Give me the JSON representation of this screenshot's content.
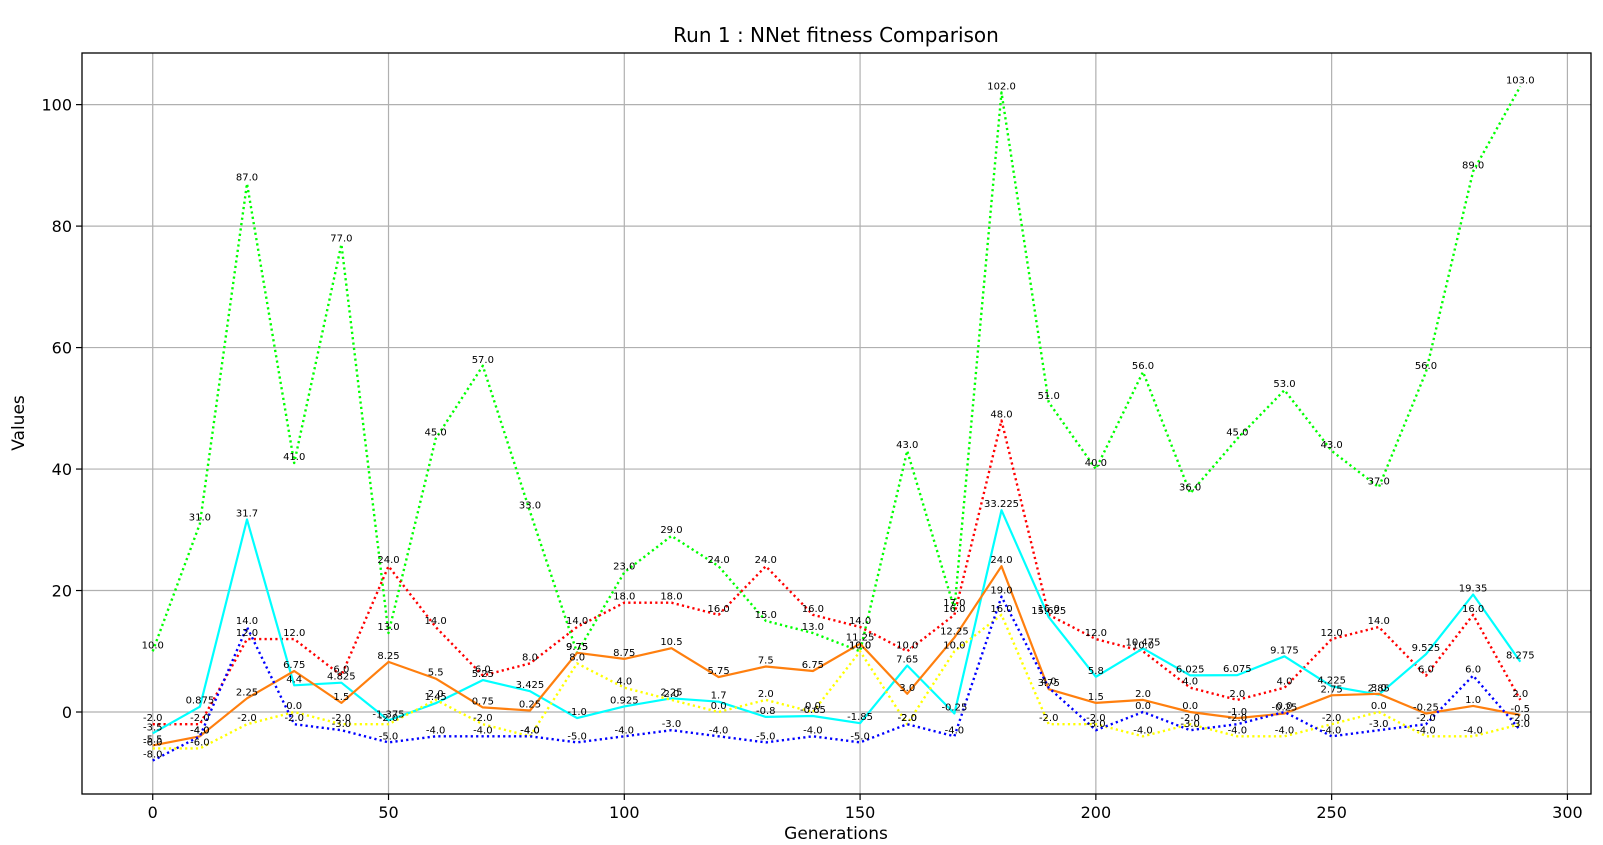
{
  "chart_data": {
    "type": "line",
    "title": "Run 1 : NNet fitness Comparison",
    "xlabel": "Generations",
    "ylabel": "Values",
    "xlim": [
      -15,
      305
    ],
    "ylim": [
      -13.5,
      108.5
    ],
    "x_ticks": [
      0,
      50,
      100,
      150,
      200,
      250,
      300
    ],
    "y_ticks": [
      0,
      20,
      40,
      60,
      80,
      100
    ],
    "grid": true,
    "legend": "none",
    "x": [
      0,
      10,
      20,
      30,
      40,
      50,
      60,
      70,
      80,
      90,
      100,
      110,
      120,
      130,
      140,
      150,
      160,
      170,
      180,
      190,
      200,
      210,
      220,
      230,
      240,
      250,
      260,
      270,
      280,
      290
    ],
    "series": [
      {
        "color": "#00ff00",
        "style": "dotted",
        "values": [
          10.0,
          31.0,
          87.0,
          41.0,
          77.0,
          13.0,
          45.0,
          57.0,
          33.0,
          9.75,
          23.0,
          29.0,
          24.0,
          15.0,
          13.0,
          10.0,
          43.0,
          17.0,
          102.0,
          51.0,
          40.0,
          56.0,
          36.0,
          45.0,
          53.0,
          43.0,
          37.0,
          56.0,
          89.0,
          103.0
        ],
        "labels": [
          "10.0",
          "31.0",
          "87.0",
          "41.0",
          "77.0",
          "13.0",
          "45.0",
          "57.0",
          "33.0",
          "9.75",
          "23.0",
          "29.0",
          "24.0",
          "15.0",
          "13.0",
          "10.0",
          "43.0",
          "17.0",
          "102.0",
          "51.0",
          "40.0",
          "56.0",
          "36.0",
          "45.0",
          "53.0",
          "43.0",
          "37.0",
          "56.0",
          "89.0",
          "103.0"
        ]
      },
      {
        "color": "#ff0000",
        "style": "dotted",
        "values": [
          -2.0,
          -2.0,
          12.0,
          12.0,
          6.0,
          24.0,
          14.0,
          6.0,
          8.0,
          14.0,
          18.0,
          18.0,
          16.0,
          24.0,
          16.0,
          14.0,
          10.0,
          16.0,
          48.0,
          16.0,
          12.0,
          10.0,
          4.0,
          2.0,
          4.0,
          12.0,
          14.0,
          6.0,
          16.0,
          2.0
        ],
        "labels": [
          "-2.0",
          "-2.0",
          "12.0",
          "12.0",
          "6.0",
          "24.0",
          "14.0",
          "6.0",
          "8.0",
          "14.0",
          "18.0",
          "18.0",
          "16.0",
          "24.0",
          "16.0",
          "14.0",
          "10.0",
          "16.0",
          "48.0",
          "16.0",
          "12.0",
          "10.0",
          "4.0",
          "2.0",
          "4.0",
          "12.0",
          "14.0",
          "6.0",
          "16.0",
          "2.0"
        ]
      },
      {
        "color": "#00ffff",
        "style": "solid",
        "values": [
          -3.5,
          0.875,
          31.7,
          4.4,
          4.825,
          -1.375,
          1.45,
          5.25,
          3.425,
          -1.0,
          0.925,
          2.25,
          1.7,
          -0.8,
          -0.65,
          -1.85,
          7.65,
          -0.25,
          33.225,
          15.625,
          5.8,
          10.475,
          6.025,
          6.075,
          9.175,
          4.225,
          2.85,
          9.525,
          19.35,
          8.275
        ],
        "labels": [
          "-3.5",
          "0.875",
          "31.7",
          "4.4",
          "4.825",
          "-1.375",
          "1.45",
          "5.25",
          "3.425",
          "-1.0",
          "0.925",
          "2.25",
          "1.7",
          "-0.8",
          "-0.65",
          "-1.85",
          "7.65",
          "-0.25",
          "33.225",
          "15.625",
          "5.8",
          "10.475",
          "6.025",
          "6.075",
          "9.175",
          "4.225",
          "2.85",
          "9.525",
          "19.35",
          "8.275"
        ]
      },
      {
        "color": "#ff7f0e",
        "style": "solid",
        "values": [
          -5.5,
          -4.0,
          2.25,
          6.75,
          1.5,
          8.25,
          5.5,
          0.75,
          0.25,
          9.75,
          8.75,
          10.5,
          5.75,
          7.5,
          6.75,
          11.25,
          3.0,
          12.25,
          24.0,
          3.75,
          1.5,
          2.0,
          0.0,
          -1.0,
          -0.25,
          2.75,
          3.0,
          -0.25,
          1.0,
          -0.5
        ],
        "labels": [
          "-5.5",
          "-4.0",
          "2.25",
          "6.75",
          "1.5",
          "8.25",
          "5.5",
          "0.75",
          "0.25",
          "9.75",
          "8.75",
          "10.5",
          "5.75",
          "7.5",
          "6.75",
          "11.25",
          "3.0",
          "12.25",
          "24.0",
          "3.75",
          "1.5",
          "2.0",
          "0.0",
          "-1.0",
          "-0.25",
          "2.75",
          "3.0",
          "-0.25",
          "1.0",
          "-0.5"
        ]
      },
      {
        "color": "#ffff00",
        "style": "dotted",
        "values": [
          -6.0,
          -6.0,
          -2.0,
          0.0,
          -2.0,
          -2.0,
          2.0,
          -2.0,
          -4.0,
          8.0,
          4.0,
          2.0,
          0.0,
          2.0,
          0.0,
          10.0,
          -2.0,
          10.0,
          16.0,
          -2.0,
          -2.0,
          -4.0,
          -2.0,
          -4.0,
          -4.0,
          -2.0,
          0.0,
          -4.0,
          -4.0,
          -2.0
        ],
        "labels": [
          "-6.0",
          "-6.0",
          "-2.0",
          "0.0",
          "-2.0",
          "-2.0",
          "2.0",
          "-2.0",
          "-4.0",
          "8.0",
          "4.0",
          "2.0",
          "0.0",
          "2.0",
          "0.0",
          "10.0",
          "-2.0",
          "10.0",
          "16.0",
          "-2.0",
          "-2.0",
          "-4.0",
          "-2.0",
          "-4.0",
          "-4.0",
          "-2.0",
          "0.0",
          "-4.0",
          "-4.0",
          "-2.0"
        ]
      },
      {
        "color": "#0000ff",
        "style": "dotted",
        "values": [
          -8.0,
          -4.0,
          14.0,
          -2.0,
          -3.0,
          -5.0,
          -4.0,
          -4.0,
          -4.0,
          -5.0,
          -4.0,
          -3.0,
          -4.0,
          -5.0,
          -4.0,
          -5.0,
          -2.0,
          -4.0,
          19.0,
          4.0,
          -3.0,
          0.0,
          -3.0,
          -2.0,
          0.0,
          -4.0,
          -3.0,
          -2.0,
          6.0,
          -3.0
        ],
        "labels": [
          "-8.0",
          "-4.0",
          "14.0",
          "-2.0",
          "-3.0",
          "-5.0",
          "-4.0",
          "-4.0",
          "-4.0",
          "-5.0",
          "-4.0",
          "-3.0",
          "-4.0",
          "-5.0",
          "-4.0",
          "-5.0",
          "-2.0",
          "-4.0",
          "19.0",
          "4.0",
          "-3.0",
          "0.0",
          "-3.0",
          "-2.0",
          "0.0",
          "-4.0",
          "-3.0",
          "-2.0",
          "6.0",
          "-3.0"
        ]
      }
    ]
  }
}
